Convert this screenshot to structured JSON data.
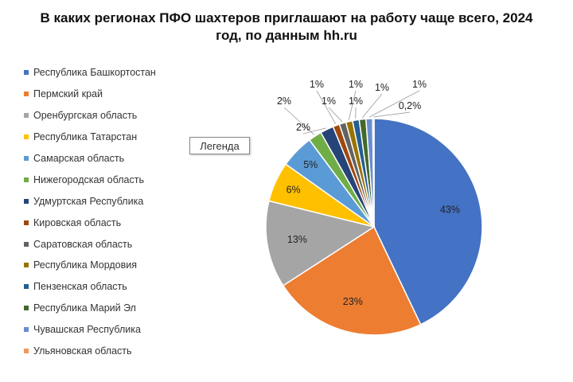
{
  "title": {
    "line1": "В каких регионах ПФО шахтеров приглашают на работу чаще всего, 2024",
    "line2": "год, по данным hh.ru"
  },
  "tooltip": "Легенда",
  "chart_data": {
    "type": "pie",
    "title": "В каких регионах ПФО шахтеров приглашают на работу чаще всего, 2024 год, по данным hh.ru",
    "legend_position": "left",
    "categories": [
      "Республика Башкортостан",
      "Пермский край",
      "Оренбургская область",
      "Республика Татарстан",
      "Самарская область",
      "Нижегородская область",
      "Удмуртская Республика",
      "Кировская область",
      "Саратовская область",
      "Республика Мордовия",
      "Пензенская область",
      "Республика Марий Эл",
      "Чувашская Республика",
      "Ульяновская область"
    ],
    "values": [
      43,
      23,
      13,
      6,
      5,
      2,
      2,
      1,
      1,
      1,
      1,
      1,
      1,
      0.2
    ],
    "labels": [
      "43%",
      "23%",
      "13%",
      "6%",
      "5%",
      "2%",
      "2%",
      "1%",
      "1%",
      "1%",
      "1%",
      "1%",
      "1%",
      "0,2%"
    ],
    "colors": [
      "#4472C4",
      "#ED7D31",
      "#A5A5A5",
      "#FFC000",
      "#5B9BD5",
      "#70AD47",
      "#264478",
      "#9E480E",
      "#636363",
      "#997300",
      "#255E91",
      "#43682B",
      "#698ED0",
      "#F1975A"
    ]
  }
}
